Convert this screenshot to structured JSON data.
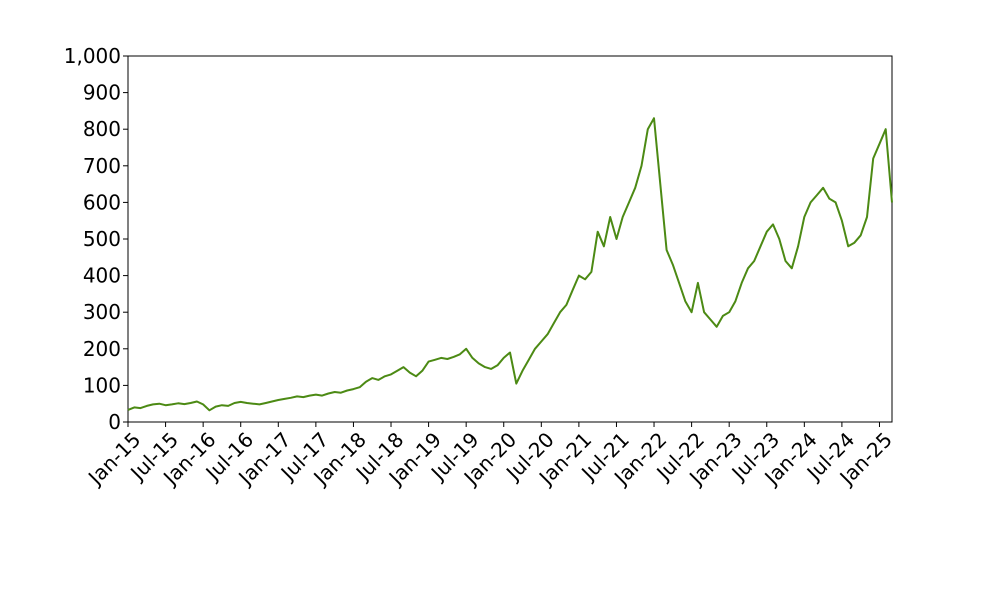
{
  "chart_data": {
    "type": "line",
    "title": "",
    "xlabel": "",
    "ylabel": "",
    "ylim": [
      0,
      1000
    ],
    "xlim": [
      "2015-01",
      "2025-03"
    ],
    "grid": false,
    "legend": "none",
    "y_ticks": [
      "0",
      "100",
      "200",
      "300",
      "400",
      "500",
      "600",
      "700",
      "800",
      "900",
      "1,000"
    ],
    "x_ticks": [
      "Jan-15",
      "Jul-15",
      "Jan-16",
      "Jul-16",
      "Jan-17",
      "Jul-17",
      "Jan-18",
      "Jul-18",
      "Jan-19",
      "Jul-19",
      "Jan-20",
      "Jul-20",
      "Jan-21",
      "Jul-21",
      "Jan-22",
      "Jul-22",
      "Jan-23",
      "Jul-23",
      "Jan-24",
      "Jul-24",
      "Jan-25"
    ],
    "series": [
      {
        "color": "#4c8a14",
        "x": [
          "2015-01",
          "2015-02",
          "2015-03",
          "2015-04",
          "2015-05",
          "2015-06",
          "2015-07",
          "2015-08",
          "2015-09",
          "2015-10",
          "2015-11",
          "2015-12",
          "2016-01",
          "2016-02",
          "2016-03",
          "2016-04",
          "2016-05",
          "2016-06",
          "2016-07",
          "2016-08",
          "2016-09",
          "2016-10",
          "2016-11",
          "2016-12",
          "2017-01",
          "2017-02",
          "2017-03",
          "2017-04",
          "2017-05",
          "2017-06",
          "2017-07",
          "2017-08",
          "2017-09",
          "2017-10",
          "2017-11",
          "2017-12",
          "2018-01",
          "2018-02",
          "2018-03",
          "2018-04",
          "2018-05",
          "2018-06",
          "2018-07",
          "2018-08",
          "2018-09",
          "2018-10",
          "2018-11",
          "2018-12",
          "2019-01",
          "2019-02",
          "2019-03",
          "2019-04",
          "2019-05",
          "2019-06",
          "2019-07",
          "2019-08",
          "2019-09",
          "2019-10",
          "2019-11",
          "2019-12",
          "2020-01",
          "2020-02",
          "2020-03",
          "2020-04",
          "2020-05",
          "2020-06",
          "2020-07",
          "2020-08",
          "2020-09",
          "2020-10",
          "2020-11",
          "2020-12",
          "2021-01",
          "2021-02",
          "2021-03",
          "2021-04",
          "2021-05",
          "2021-06",
          "2021-07",
          "2021-08",
          "2021-09",
          "2021-10",
          "2021-11",
          "2021-12",
          "2022-01",
          "2022-02",
          "2022-03",
          "2022-04",
          "2022-05",
          "2022-06",
          "2022-07",
          "2022-08",
          "2022-09",
          "2022-10",
          "2022-11",
          "2022-12",
          "2023-01",
          "2023-02",
          "2023-03",
          "2023-04",
          "2023-05",
          "2023-06",
          "2023-07",
          "2023-08",
          "2023-09",
          "2023-10",
          "2023-11",
          "2023-12",
          "2024-01",
          "2024-02",
          "2024-03",
          "2024-04",
          "2024-05",
          "2024-06",
          "2024-07",
          "2024-08",
          "2024-09",
          "2024-10",
          "2024-11",
          "2024-12",
          "2025-01",
          "2025-02",
          "2025-03"
        ],
        "y": [
          33,
          40,
          38,
          44,
          48,
          50,
          46,
          48,
          51,
          49,
          52,
          56,
          48,
          32,
          42,
          46,
          44,
          52,
          55,
          52,
          50,
          48,
          52,
          56,
          60,
          63,
          66,
          70,
          68,
          72,
          75,
          72,
          78,
          82,
          80,
          86,
          90,
          95,
          110,
          120,
          115,
          125,
          130,
          140,
          150,
          135,
          125,
          140,
          165,
          170,
          175,
          172,
          178,
          185,
          200,
          175,
          160,
          150,
          145,
          155,
          175,
          190,
          105,
          140,
          170,
          200,
          220,
          240,
          270,
          300,
          320,
          360,
          400,
          390,
          410,
          520,
          480,
          560,
          500,
          560,
          600,
          640,
          700,
          800,
          830,
          650,
          470,
          430,
          380,
          330,
          300,
          380,
          300,
          280,
          260,
          290,
          300,
          330,
          380,
          420,
          440,
          480,
          520,
          540,
          500,
          440,
          420,
          480,
          560,
          600,
          620,
          640,
          610,
          600,
          550,
          480,
          490,
          510,
          560,
          720,
          760,
          800,
          600
        ]
      }
    ]
  }
}
